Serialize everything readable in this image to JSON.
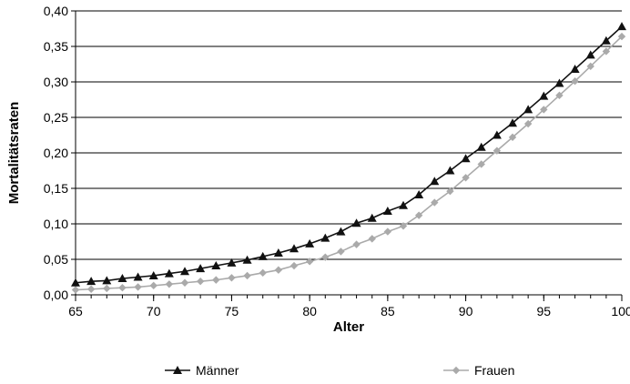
{
  "chart_data": {
    "type": "line",
    "title": "",
    "xlabel": "Alter",
    "ylabel": "Mortalitätsraten",
    "xlim": [
      65,
      100
    ],
    "ylim": [
      0,
      0.4
    ],
    "x_ticks": [
      65,
      70,
      75,
      80,
      85,
      90,
      95,
      100
    ],
    "x_tick_labels": [
      "65",
      "70",
      "75",
      "80",
      "85",
      "90",
      "95",
      "100"
    ],
    "y_ticks": [
      0,
      0.05,
      0.1,
      0.15,
      0.2,
      0.25,
      0.3,
      0.35,
      0.4
    ],
    "y_tick_labels": [
      "0,00",
      "0,05",
      "0,10",
      "0,15",
      "0,20",
      "0,25",
      "0,30",
      "0,35",
      "0,40"
    ],
    "grid": "horizontal",
    "legend_position": "bottom",
    "x": [
      65,
      66,
      67,
      68,
      69,
      70,
      71,
      72,
      73,
      74,
      75,
      76,
      77,
      78,
      79,
      80,
      81,
      82,
      83,
      84,
      85,
      86,
      87,
      88,
      89,
      90,
      91,
      92,
      93,
      94,
      95,
      96,
      97,
      98,
      99,
      100
    ],
    "series": [
      {
        "name": "Männer",
        "color": "#111111",
        "marker": "triangle",
        "values": [
          0.017,
          0.019,
          0.02,
          0.023,
          0.025,
          0.027,
          0.03,
          0.033,
          0.037,
          0.041,
          0.045,
          0.049,
          0.054,
          0.059,
          0.065,
          0.072,
          0.08,
          0.089,
          0.101,
          0.108,
          0.118,
          0.126,
          0.141,
          0.16,
          0.175,
          0.192,
          0.208,
          0.225,
          0.242,
          0.261,
          0.28,
          0.298,
          0.318,
          0.338,
          0.358,
          0.378
        ]
      },
      {
        "name": "Frauen",
        "color": "#aaaaaa",
        "marker": "diamond",
        "values": [
          0.007,
          0.008,
          0.009,
          0.01,
          0.011,
          0.013,
          0.015,
          0.017,
          0.019,
          0.021,
          0.024,
          0.027,
          0.031,
          0.035,
          0.041,
          0.047,
          0.053,
          0.061,
          0.071,
          0.079,
          0.089,
          0.097,
          0.112,
          0.13,
          0.146,
          0.165,
          0.184,
          0.203,
          0.222,
          0.241,
          0.261,
          0.281,
          0.301,
          0.322,
          0.343,
          0.364
        ]
      }
    ]
  }
}
